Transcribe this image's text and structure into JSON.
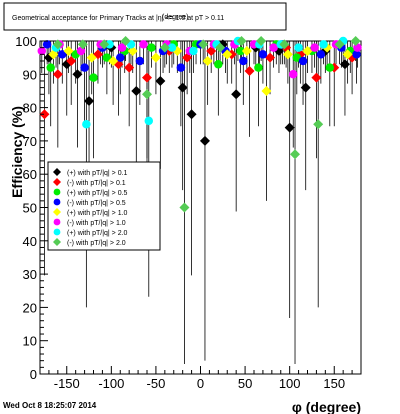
{
  "chart_data": {
    "type": "scatter",
    "title": "Geometrical acceptance for Primary Tracks at |η| <= 1.0 at pT > 0.11",
    "title_overlap": "(degree)",
    "xlabel": "φ (degree)",
    "ylabel": "Efficiency (%)",
    "xlim": [
      -180,
      180
    ],
    "ylim": [
      0,
      100
    ],
    "x_ticks": [
      -150,
      -100,
      -50,
      0,
      50,
      100,
      150
    ],
    "y_ticks": [
      0,
      10,
      20,
      30,
      40,
      50,
      60,
      70,
      80,
      90,
      100
    ],
    "series": [
      {
        "name": "(+) with pT/|q| > 0.1",
        "color": "#000000",
        "marker": "diamond",
        "points": [
          [
            -170,
            95
          ],
          [
            -150,
            93
          ],
          [
            -138,
            90
          ],
          [
            -125,
            82
          ],
          [
            -100,
            98
          ],
          [
            -72,
            85
          ],
          [
            -45,
            88
          ],
          [
            -20,
            86
          ],
          [
            -10,
            78
          ],
          [
            5,
            70
          ],
          [
            25,
            99
          ],
          [
            40,
            84
          ],
          [
            62,
            98
          ],
          [
            88,
            97
          ],
          [
            100,
            74
          ],
          [
            118,
            86
          ],
          [
            140,
            97
          ],
          [
            162,
            93
          ]
        ]
      },
      {
        "name": "(-) with pT/|q| > 0.1",
        "color": "#ff0000",
        "marker": "diamond",
        "points": [
          [
            -175,
            78
          ],
          [
            -160,
            90
          ],
          [
            -145,
            94
          ],
          [
            -115,
            96
          ],
          [
            -92,
            93
          ],
          [
            -80,
            92
          ],
          [
            -60,
            89
          ],
          [
            -35,
            97
          ],
          [
            -15,
            95
          ],
          [
            12,
            97
          ],
          [
            35,
            96
          ],
          [
            55,
            91
          ],
          [
            78,
            95
          ],
          [
            96,
            98
          ],
          [
            112,
            96
          ],
          [
            130,
            89
          ],
          [
            150,
            92
          ],
          [
            170,
            95
          ]
        ]
      },
      {
        "name": "(+) with pT/|q| > 0.5",
        "color": "#00ee00",
        "marker": "circle",
        "points": [
          [
            -168,
            92
          ],
          [
            -140,
            96
          ],
          [
            -120,
            89
          ],
          [
            -105,
            95
          ],
          [
            -85,
            97
          ],
          [
            -55,
            98
          ],
          [
            -30,
            99
          ],
          [
            -5,
            99
          ],
          [
            20,
            93
          ],
          [
            45,
            97
          ],
          [
            65,
            92
          ],
          [
            85,
            99
          ],
          [
            108,
            95
          ],
          [
            125,
            97
          ],
          [
            145,
            92
          ],
          [
            168,
            97
          ]
        ]
      },
      {
        "name": "(-) with pT/|q| > 0.5",
        "color": "#0000ff",
        "marker": "circle",
        "points": [
          [
            -172,
            99
          ],
          [
            -155,
            96
          ],
          [
            -130,
            92
          ],
          [
            -110,
            98
          ],
          [
            -90,
            95
          ],
          [
            -68,
            94
          ],
          [
            -42,
            97
          ],
          [
            -22,
            92
          ],
          [
            0,
            99
          ],
          [
            28,
            97
          ],
          [
            48,
            94
          ],
          [
            70,
            96
          ],
          [
            92,
            99
          ],
          [
            115,
            94
          ],
          [
            135,
            96
          ],
          [
            158,
            98
          ],
          [
            175,
            96
          ]
        ]
      },
      {
        "name": "(+) with pT/|q| > 1.0",
        "color": "#ffff00",
        "marker": "diamond",
        "points": [
          [
            -165,
            96
          ],
          [
            -148,
            97
          ],
          [
            -122,
            95
          ],
          [
            -98,
            94
          ],
          [
            -76,
            97
          ],
          [
            -50,
            95
          ],
          [
            -26,
            97
          ],
          [
            8,
            94
          ],
          [
            30,
            96
          ],
          [
            52,
            97
          ],
          [
            74,
            85
          ],
          [
            98,
            96
          ],
          [
            120,
            97
          ],
          [
            142,
            98
          ],
          [
            165,
            96
          ]
        ]
      },
      {
        "name": "(-) with pT/|q| > 1.0",
        "color": "#ff00ff",
        "marker": "circle",
        "points": [
          [
            -178,
            97
          ],
          [
            -158,
            99
          ],
          [
            -134,
            97
          ],
          [
            -112,
            99
          ],
          [
            -88,
            98
          ],
          [
            -64,
            99
          ],
          [
            -38,
            99
          ],
          [
            -12,
            97
          ],
          [
            15,
            99
          ],
          [
            38,
            99
          ],
          [
            60,
            99
          ],
          [
            82,
            98
          ],
          [
            104,
            90
          ],
          [
            128,
            98
          ],
          [
            152,
            99
          ],
          [
            176,
            98
          ]
        ]
      },
      {
        "name": "(+) with pT/|q| > 2.0",
        "color": "#00ffff",
        "marker": "circle",
        "points": [
          [
            -162,
            98
          ],
          [
            -128,
            75
          ],
          [
            -102,
            99
          ],
          [
            -78,
            99
          ],
          [
            -58,
            76
          ],
          [
            -32,
            98
          ],
          [
            -8,
            97
          ],
          [
            18,
            99
          ],
          [
            42,
            100
          ],
          [
            66,
            99
          ],
          [
            90,
            99
          ],
          [
            110,
            98
          ],
          [
            138,
            99
          ],
          [
            160,
            100
          ]
        ]
      },
      {
        "name": "(-) with pT/|q| > 2.0",
        "color": "#55cc55",
        "marker": "diamond",
        "points": [
          [
            -160,
            99
          ],
          [
            -132,
            99
          ],
          [
            -108,
            99
          ],
          [
            -84,
            100
          ],
          [
            -60,
            84
          ],
          [
            -40,
            98
          ],
          [
            -18,
            50
          ],
          [
            3,
            99
          ],
          [
            22,
            98
          ],
          [
            46,
            100
          ],
          [
            68,
            100
          ],
          [
            94,
            99
          ],
          [
            106,
            66
          ],
          [
            132,
            75
          ],
          [
            156,
            99
          ],
          [
            174,
            100
          ]
        ]
      }
    ]
  },
  "footer": {
    "timestamp": "Wed Oct  8 18:25:07 2014"
  }
}
